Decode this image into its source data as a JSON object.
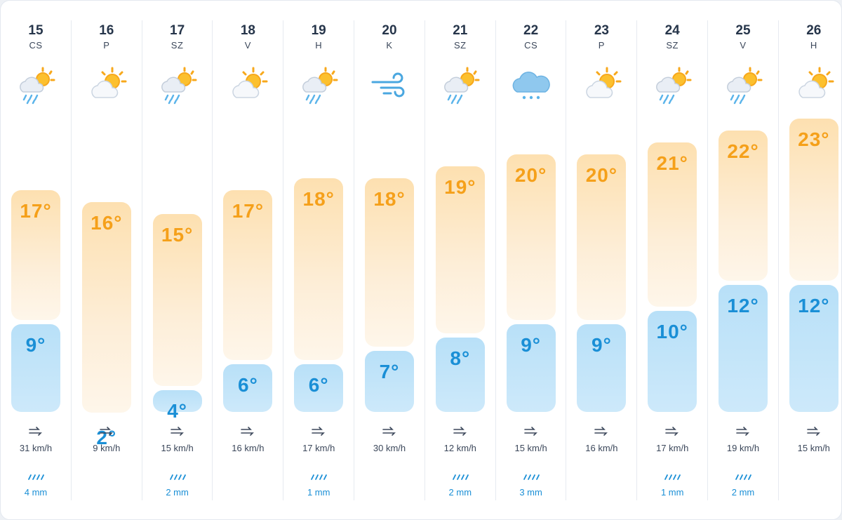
{
  "days": [
    {
      "date": "15",
      "dow": "CS",
      "icon": "rain-sun-icon",
      "high": "17°",
      "low": "9°",
      "high_val": 17,
      "low_val": 9,
      "wind": "31 km/h",
      "rain": "4 mm"
    },
    {
      "date": "16",
      "dow": "P",
      "icon": "partly-cloudy-icon",
      "high": "16°",
      "low": "2°",
      "high_val": 16,
      "low_val": 2,
      "wind": "9 km/h",
      "rain": ""
    },
    {
      "date": "17",
      "dow": "SZ",
      "icon": "rain-sun-icon",
      "high": "15°",
      "low": "4°",
      "high_val": 15,
      "low_val": 4,
      "wind": "15 km/h",
      "rain": "2 mm"
    },
    {
      "date": "18",
      "dow": "V",
      "icon": "partly-cloudy-icon",
      "high": "17°",
      "low": "6°",
      "high_val": 17,
      "low_val": 6,
      "wind": "16 km/h",
      "rain": ""
    },
    {
      "date": "19",
      "dow": "H",
      "icon": "rain-sun-icon",
      "high": "18°",
      "low": "6°",
      "high_val": 18,
      "low_val": 6,
      "wind": "17 km/h",
      "rain": "1 mm"
    },
    {
      "date": "20",
      "dow": "K",
      "icon": "wind-icon",
      "high": "18°",
      "low": "7°",
      "high_val": 18,
      "low_val": 7,
      "wind": "30 km/h",
      "rain": ""
    },
    {
      "date": "21",
      "dow": "SZ",
      "icon": "rain-sun-icon",
      "high": "19°",
      "low": "8°",
      "high_val": 19,
      "low_val": 8,
      "wind": "12 km/h",
      "rain": "2 mm"
    },
    {
      "date": "22",
      "dow": "CS",
      "icon": "rain-cloud-icon",
      "high": "20°",
      "low": "9°",
      "high_val": 20,
      "low_val": 9,
      "wind": "15 km/h",
      "rain": "3 mm"
    },
    {
      "date": "23",
      "dow": "P",
      "icon": "partly-cloudy-icon",
      "high": "20°",
      "low": "9°",
      "high_val": 20,
      "low_val": 9,
      "wind": "16 km/h",
      "rain": ""
    },
    {
      "date": "24",
      "dow": "SZ",
      "icon": "rain-sun-icon",
      "high": "21°",
      "low": "10°",
      "high_val": 21,
      "low_val": 10,
      "wind": "17 km/h",
      "rain": "1 mm"
    },
    {
      "date": "25",
      "dow": "V",
      "icon": "rain-sun-icon",
      "high": "22°",
      "low": "12°",
      "high_val": 22,
      "low_val": 12,
      "wind": "19 km/h",
      "rain": "2 mm"
    },
    {
      "date": "26",
      "dow": "H",
      "icon": "partly-cloudy-icon",
      "high": "23°",
      "low": "12°",
      "high_val": 23,
      "low_val": 12,
      "wind": "15 km/h",
      "rain": ""
    }
  ],
  "colors": {
    "high_text": "#f5a01a",
    "low_text": "#1a8fd6",
    "rain_text": "#1a8fd6"
  }
}
